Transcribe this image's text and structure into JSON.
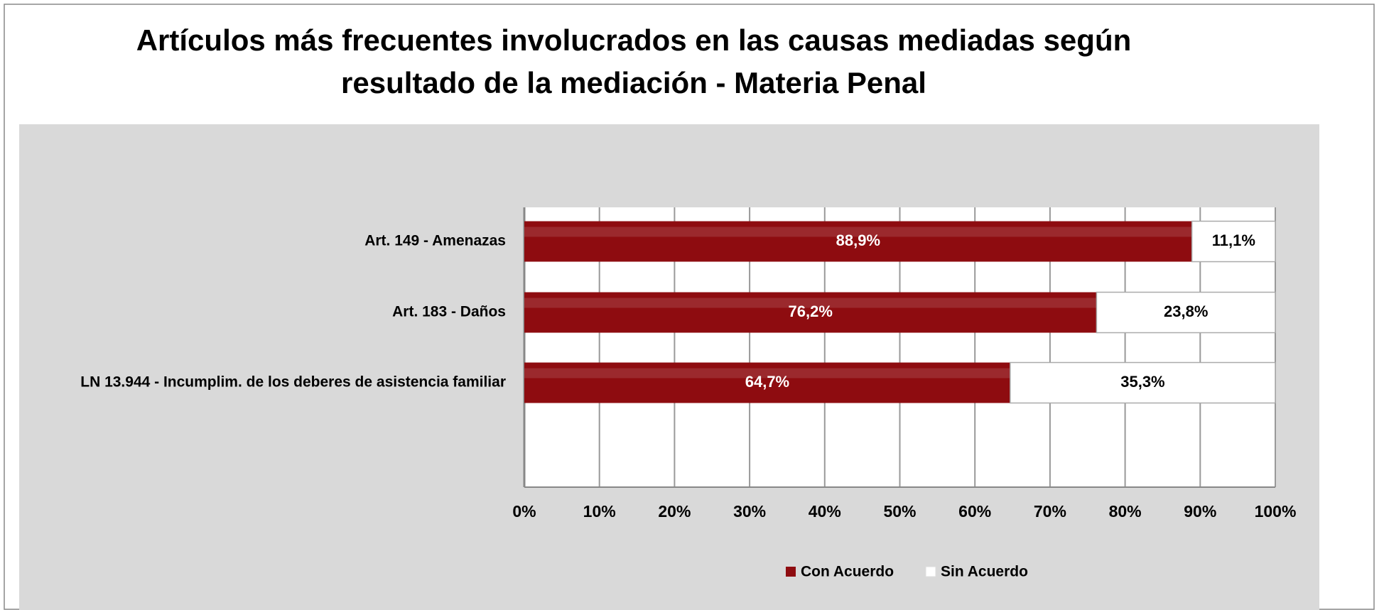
{
  "chart_data": {
    "type": "stacked_bar_horizontal",
    "title": "Artículos más frecuentes involucrados en las causas mediadas según",
    "subtitle": "resultado de la mediación - Materia Penal",
    "categories": [
      "Art. 149 - Amenazas",
      "Art. 183 - Daños",
      "LN 13.944 - Incumplim. de los deberes de asistencia familiar"
    ],
    "series": [
      {
        "name": "Con Acuerdo",
        "color": "#8e0c10",
        "values": [
          88.9,
          76.2,
          64.7
        ],
        "value_labels": [
          "88,9%",
          "76,2%",
          "64,7%"
        ]
      },
      {
        "name": "Sin Acuerdo",
        "color": "#ffffff",
        "values": [
          11.1,
          23.8,
          35.3
        ],
        "value_labels": [
          "11,1%",
          "23,8%",
          "35,3%"
        ]
      }
    ],
    "xlim": [
      0,
      100
    ],
    "xticks": [
      {
        "value": 0,
        "label": "0%"
      },
      {
        "value": 10,
        "label": "10%"
      },
      {
        "value": 20,
        "label": "20%"
      },
      {
        "value": 30,
        "label": "30%"
      },
      {
        "value": 40,
        "label": "40%"
      },
      {
        "value": 50,
        "label": "50%"
      },
      {
        "value": 60,
        "label": "60%"
      },
      {
        "value": 70,
        "label": "70%"
      },
      {
        "value": 80,
        "label": "80%"
      },
      {
        "value": 90,
        "label": "90%"
      },
      {
        "value": 100,
        "label": "100%"
      }
    ],
    "grid": true,
    "legend": "bottom"
  }
}
